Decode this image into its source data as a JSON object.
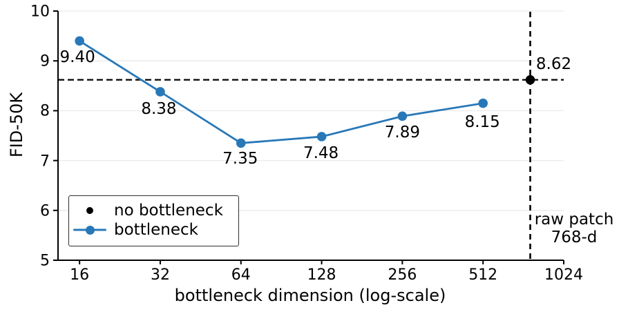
{
  "chart_data": {
    "type": "line",
    "title": "",
    "xlabel": "bottleneck dimension (log-scale)",
    "ylabel": "FID-50K",
    "x_scale": "log2",
    "xlim": [
      13.3,
      1024
    ],
    "ylim": [
      5,
      10
    ],
    "x_ticks": [
      16,
      32,
      64,
      128,
      256,
      512,
      1024
    ],
    "y_ticks": [
      5,
      6,
      7,
      8,
      9,
      10
    ],
    "grid": "horizontal",
    "grid_color": "#eaeaea",
    "legend_position": "lower-left",
    "series": [
      {
        "name": "bottleneck",
        "color": "#2878b8",
        "marker": "circle",
        "line": "solid",
        "x": [
          16,
          32,
          64,
          128,
          256,
          512
        ],
        "y": [
          9.4,
          8.38,
          7.35,
          7.48,
          7.89,
          8.15
        ],
        "labels": [
          "9.40",
          "8.38",
          "7.35",
          "7.48",
          "7.89",
          "8.15"
        ]
      },
      {
        "name": "no bottleneck",
        "color": "#000000",
        "marker": "circle",
        "line": "none",
        "x": [
          768
        ],
        "y": [
          8.62
        ],
        "labels": [
          "8.62"
        ]
      }
    ],
    "reference_lines": {
      "horizontal": {
        "y": 8.62,
        "style": "dashed",
        "color": "#000000"
      },
      "vertical": {
        "x": 768,
        "style": "dashed",
        "color": "#000000",
        "label_line1": "raw patch",
        "label_line2": "768-d"
      }
    }
  },
  "legend": {
    "items": [
      {
        "label": "no bottleneck",
        "color": "#000000",
        "marker": "dot"
      },
      {
        "label": "bottleneck",
        "color": "#2878b8",
        "marker": "line-dot"
      }
    ]
  }
}
